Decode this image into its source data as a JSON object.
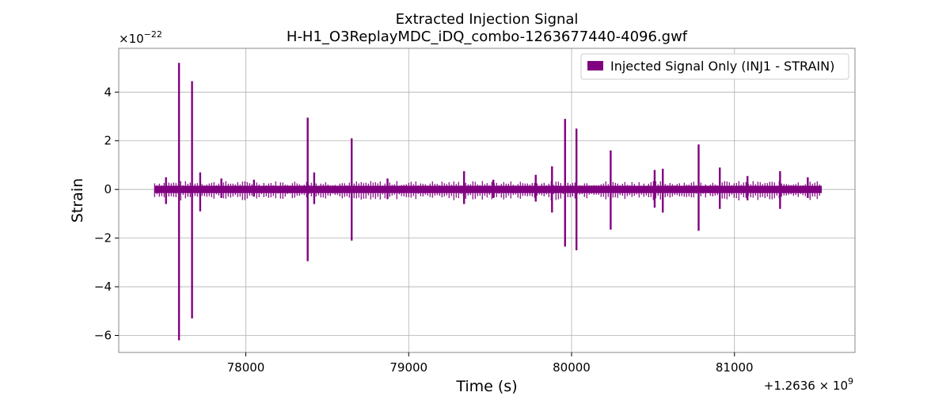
{
  "chart_data": {
    "type": "line",
    "title": "Extracted Injection Signal",
    "subtitle": "H-H1_O3ReplayMDC_iDQ_combo-1263677440-4096.gwf",
    "xlabel": "Time (s)",
    "ylabel": "Strain",
    "x_offset_label": "+1.2636 × 10",
    "x_offset_exponent": "9",
    "y_multiplier_label": "×10",
    "y_multiplier_exponent": "−22",
    "x_offset": 1263600000,
    "y_scale": 1e-22,
    "xlim": [
      77220,
      81740
    ],
    "ylim": [
      -6.7,
      5.8
    ],
    "x_ticks": [
      {
        "value": 78000,
        "label": "78000"
      },
      {
        "value": 79000,
        "label": "79000"
      },
      {
        "value": 80000,
        "label": "80000"
      },
      {
        "value": 81000,
        "label": "81000"
      }
    ],
    "y_ticks": [
      {
        "value": 4,
        "label": "4"
      },
      {
        "value": 2,
        "label": "2"
      },
      {
        "value": 0,
        "label": "0"
      },
      {
        "value": -2,
        "label": "−2"
      },
      {
        "value": -4,
        "label": "−4"
      },
      {
        "value": -6,
        "label": "−6"
      }
    ],
    "grid": true,
    "legend_position": "top-right",
    "series": [
      {
        "name": "Injected Signal Only (INJ1 - STRAIN)",
        "color": "#800080",
        "x_range": [
          77440,
          81536
        ],
        "baseline_band": [
          -0.15,
          0.15
        ],
        "spikes": [
          {
            "x": 77510,
            "ymax": 0.5,
            "ymin": -0.6
          },
          {
            "x": 77590,
            "ymax": 5.2,
            "ymin": -6.2
          },
          {
            "x": 77670,
            "ymax": 4.45,
            "ymin": -5.3
          },
          {
            "x": 77720,
            "ymax": 0.7,
            "ymin": -0.9
          },
          {
            "x": 77850,
            "ymax": 0.45,
            "ymin": -0.35
          },
          {
            "x": 78050,
            "ymax": 0.4,
            "ymin": -0.3
          },
          {
            "x": 78380,
            "ymax": 2.95,
            "ymin": -2.95
          },
          {
            "x": 78420,
            "ymax": 0.7,
            "ymin": -0.6
          },
          {
            "x": 78650,
            "ymax": 2.1,
            "ymin": -2.1
          },
          {
            "x": 78870,
            "ymax": 0.45,
            "ymin": -0.4
          },
          {
            "x": 79340,
            "ymax": 0.75,
            "ymin": -0.6
          },
          {
            "x": 79520,
            "ymax": 0.4,
            "ymin": -0.35
          },
          {
            "x": 79780,
            "ymax": 0.6,
            "ymin": -0.5
          },
          {
            "x": 79880,
            "ymax": 0.95,
            "ymin": -0.95
          },
          {
            "x": 79960,
            "ymax": 2.9,
            "ymin": -2.35
          },
          {
            "x": 80030,
            "ymax": 2.5,
            "ymin": -2.5
          },
          {
            "x": 80240,
            "ymax": 1.6,
            "ymin": -1.65
          },
          {
            "x": 80510,
            "ymax": 0.8,
            "ymin": -0.75
          },
          {
            "x": 80560,
            "ymax": 0.85,
            "ymin": -0.95
          },
          {
            "x": 80780,
            "ymax": 1.85,
            "ymin": -1.7
          },
          {
            "x": 80910,
            "ymax": 0.9,
            "ymin": -0.8
          },
          {
            "x": 81080,
            "ymax": 0.55,
            "ymin": -0.45
          },
          {
            "x": 81280,
            "ymax": 0.75,
            "ymin": -0.8
          },
          {
            "x": 81450,
            "ymax": 0.5,
            "ymin": -0.35
          }
        ]
      }
    ]
  }
}
